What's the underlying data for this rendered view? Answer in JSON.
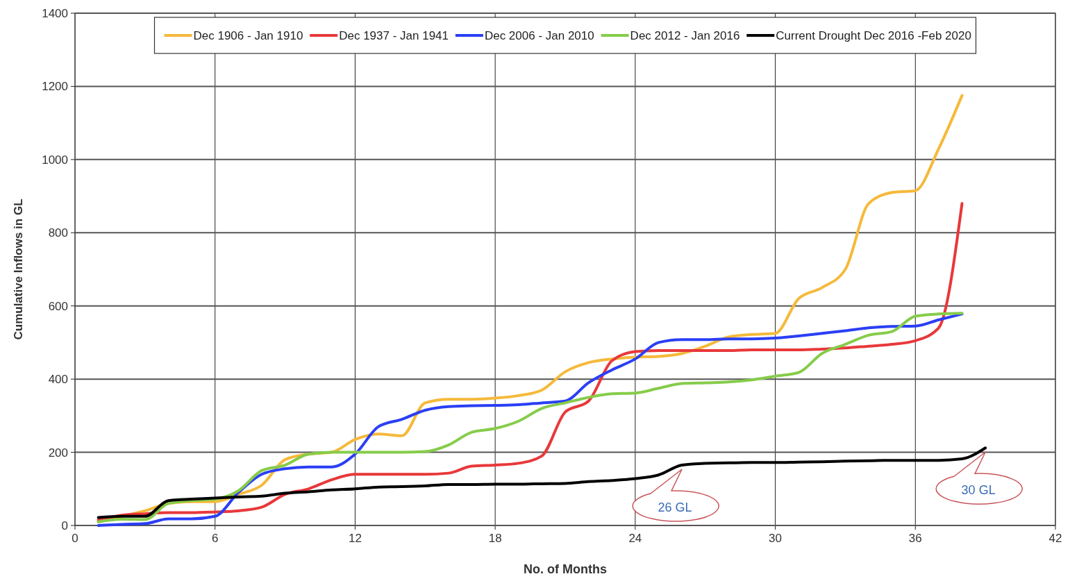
{
  "chart_data": {
    "type": "line",
    "xlabel": "No. of Months",
    "ylabel": "Cumulative Inflows in GL",
    "x": [
      1,
      2,
      3,
      4,
      5,
      6,
      7,
      8,
      9,
      10,
      11,
      12,
      13,
      14,
      15,
      16,
      17,
      18,
      19,
      20,
      21,
      22,
      23,
      24,
      25,
      26,
      27,
      28,
      29,
      30,
      31,
      32,
      33,
      34,
      35,
      36,
      37,
      38
    ],
    "xlim": [
      0,
      42
    ],
    "xticks": [
      0,
      6,
      12,
      18,
      24,
      30,
      36,
      42
    ],
    "ylim": [
      0,
      1400
    ],
    "yticks": [
      0,
      200,
      400,
      600,
      800,
      1000,
      1200,
      1400
    ],
    "grid": true,
    "legend": "top",
    "line_style": "solid",
    "marker": "none",
    "series": [
      {
        "name": "Dec 1906 - Jan 1910",
        "color": "#f5b93a",
        "values": [
          10,
          25,
          40,
          60,
          65,
          65,
          85,
          110,
          180,
          195,
          200,
          235,
          250,
          245,
          335,
          345,
          345,
          348,
          355,
          370,
          420,
          445,
          455,
          460,
          462,
          470,
          490,
          515,
          522,
          525,
          620,
          650,
          700,
          880,
          910,
          915,
          1030,
          1175
        ]
      },
      {
        "name": "Dec 1937 - Jan 1941",
        "color": "#e8383a",
        "values": [
          15,
          28,
          32,
          35,
          35,
          37,
          40,
          50,
          85,
          100,
          125,
          140,
          140,
          140,
          140,
          143,
          162,
          165,
          170,
          190,
          310,
          340,
          450,
          475,
          478,
          478,
          478,
          478,
          480,
          480,
          480,
          482,
          485,
          490,
          495,
          505,
          540,
          880
        ]
      },
      {
        "name": "Dec 2006 - Jan 2010",
        "color": "#2a3ff5",
        "values": [
          0,
          3,
          5,
          18,
          18,
          25,
          90,
          140,
          155,
          160,
          160,
          195,
          270,
          290,
          315,
          325,
          327,
          328,
          330,
          335,
          340,
          390,
          425,
          455,
          500,
          508,
          508,
          510,
          510,
          512,
          518,
          525,
          532,
          540,
          544,
          545,
          562,
          578
        ]
      },
      {
        "name": "Dec 2012 - Jan 2016",
        "color": "#86cc4a",
        "values": [
          10,
          17,
          16,
          60,
          68,
          72,
          95,
          150,
          165,
          195,
          200,
          200,
          200,
          200,
          202,
          220,
          255,
          265,
          285,
          320,
          335,
          350,
          360,
          362,
          375,
          388,
          390,
          392,
          398,
          408,
          418,
          470,
          495,
          520,
          530,
          572,
          578,
          580
        ]
      },
      {
        "name": "Current Drought Dec 2016 -Feb 2020",
        "color": "#000000",
        "x": [
          1,
          2,
          3,
          4,
          5,
          6,
          7,
          8,
          9,
          10,
          11,
          12,
          13,
          14,
          15,
          16,
          17,
          18,
          19,
          20,
          21,
          22,
          23,
          24,
          25,
          26,
          27,
          28,
          29,
          30,
          31,
          32,
          33,
          34,
          35,
          36,
          37,
          38,
          39
        ],
        "values": [
          22,
          25,
          25,
          68,
          72,
          75,
          78,
          80,
          88,
          92,
          97,
          100,
          105,
          106,
          108,
          112,
          112,
          113,
          113,
          114,
          115,
          120,
          123,
          128,
          138,
          165,
          170,
          171,
          172,
          172,
          173,
          174,
          176,
          177,
          178,
          178,
          178,
          182,
          212
        ]
      }
    ],
    "annotations": [
      {
        "text": "26 GL",
        "x": 26,
        "y": 165
      },
      {
        "text": "30 GL",
        "x": 39,
        "y": 212
      }
    ]
  }
}
